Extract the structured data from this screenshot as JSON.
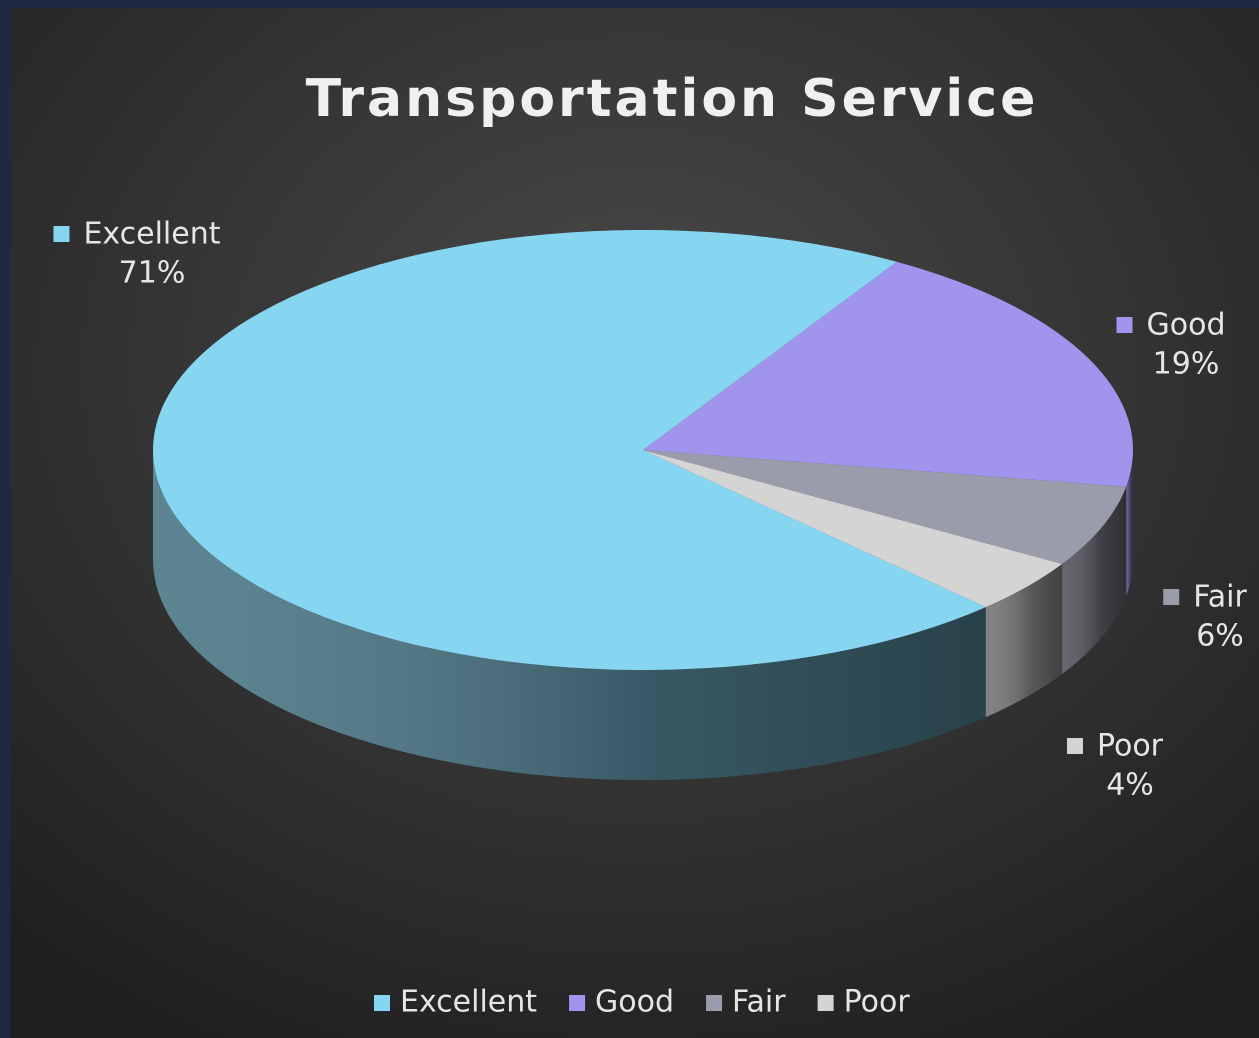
{
  "chart_data": {
    "type": "pie",
    "title": "Transportation Service",
    "categories": [
      "Excellent",
      "Good",
      "Fair",
      "Poor"
    ],
    "values": [
      71,
      19,
      6,
      4
    ],
    "value_labels": [
      "71%",
      "19%",
      "6%",
      "4%"
    ],
    "colors": [
      "#86d6f2",
      "#a094ec",
      "#9a9bab",
      "#d4d4d4"
    ],
    "legend": "bottom"
  }
}
